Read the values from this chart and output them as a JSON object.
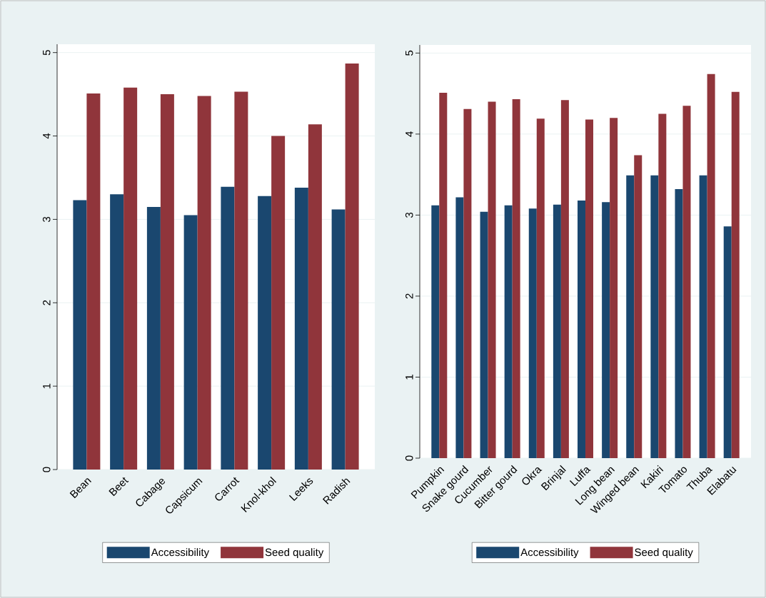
{
  "chart_data": [
    {
      "type": "bar",
      "categories": [
        "Bean",
        "Beet",
        "Cabage",
        "Capsicum",
        "Carrot",
        "Knol-khol",
        "Leeks",
        "Radish"
      ],
      "series": [
        {
          "name": "Accessibility",
          "color": "#1a476f",
          "values": [
            3.23,
            3.3,
            3.15,
            3.05,
            3.39,
            3.28,
            3.38,
            3.12
          ]
        },
        {
          "name": "Seed quality",
          "color": "#90353b",
          "values": [
            4.51,
            4.58,
            4.5,
            4.48,
            4.53,
            4.0,
            4.14,
            4.87
          ]
        }
      ],
      "ylim": [
        0,
        5.1
      ],
      "yticks": [
        0,
        1,
        2,
        3,
        4,
        5
      ],
      "grid": "y",
      "legend": "bottom"
    },
    {
      "type": "bar",
      "categories": [
        "Pumpkin",
        "Snake gourd",
        "Cucumber",
        "Bitter gourd",
        "Okra",
        "Brinjal",
        "Luffa",
        "Long bean",
        "Winged bean",
        "Kakiri",
        "Tomato",
        "Thuba",
        "Elabatu"
      ],
      "series": [
        {
          "name": "Accessibility",
          "color": "#1a476f",
          "values": [
            3.12,
            3.22,
            3.04,
            3.12,
            3.08,
            3.13,
            3.18,
            3.16,
            3.49,
            3.49,
            3.32,
            3.49,
            2.86
          ]
        },
        {
          "name": "Seed quality",
          "color": "#90353b",
          "values": [
            4.51,
            4.31,
            4.4,
            4.43,
            4.19,
            4.42,
            4.18,
            4.2,
            3.74,
            4.25,
            4.35,
            4.74,
            4.52
          ]
        }
      ],
      "ylim": [
        0,
        5.1
      ],
      "yticks": [
        0,
        1,
        2,
        3,
        4,
        5
      ],
      "grid": "y",
      "legend": "bottom"
    }
  ]
}
